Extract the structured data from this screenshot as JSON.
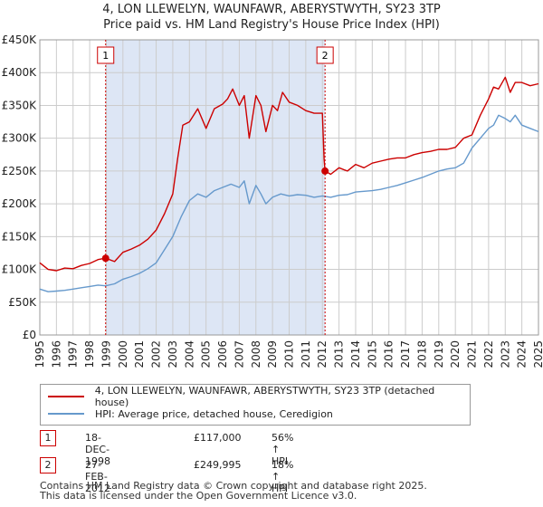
{
  "header": {
    "title_line1": "4, LON LLEWELYN, WAUNFAWR, ABERYSTWYTH, SY23 3TP",
    "title_line2": "Price paid vs. HM Land Registry's House Price Index (HPI)"
  },
  "colors": {
    "property": "#cc0000",
    "hpi": "#6699cc",
    "shade": "#dde6f5",
    "grid": "#cccccc"
  },
  "legend": {
    "property_label": "4, LON LLEWELYN, WAUNFAWR, ABERYSTWYTH, SY23 3TP (detached house)",
    "hpi_label": "HPI: Average price, detached house, Ceredigion"
  },
  "transactions": [
    {
      "id": "1",
      "date": "18-DEC-1998",
      "price": "£117,000",
      "hpi_change": "56% ↑ HPI"
    },
    {
      "id": "2",
      "date": "27-FEB-2012",
      "price": "£249,995",
      "hpi_change": "18% ↑ HPI"
    }
  ],
  "footer": {
    "line1": "Contains HM Land Registry data © Crown copyright and database right 2025.",
    "line2": "This data is licensed under the Open Government Licence v3.0."
  },
  "chart_data": {
    "type": "line",
    "title": "4, LON LLEWELYN, WAUNFAWR, ABERYSTWYTH, SY23 3TP — Price paid vs. HM Land Registry's House Price Index (HPI)",
    "xlabel": "",
    "ylabel": "",
    "xlim": [
      1995,
      2025
    ],
    "ylim": [
      0,
      450000
    ],
    "y_ticks": [
      0,
      50000,
      100000,
      150000,
      200000,
      250000,
      300000,
      350000,
      400000,
      450000
    ],
    "y_tick_labels": [
      "£0",
      "£50K",
      "£100K",
      "£150K",
      "£200K",
      "£250K",
      "£300K",
      "£350K",
      "£400K",
      "£450K"
    ],
    "x_ticks": [
      1995,
      1996,
      1997,
      1998,
      1999,
      2000,
      2001,
      2002,
      2003,
      2004,
      2005,
      2006,
      2007,
      2008,
      2009,
      2010,
      2011,
      2012,
      2013,
      2014,
      2015,
      2016,
      2017,
      2018,
      2019,
      2020,
      2021,
      2022,
      2023,
      2024,
      2025
    ],
    "grid": true,
    "shaded_region": [
      1998.96,
      2012.16
    ],
    "markers": [
      {
        "label": "1",
        "x": 1998.96,
        "y": 117000
      },
      {
        "label": "2",
        "x": 2012.16,
        "y": 249995
      }
    ],
    "series": [
      {
        "name": "4, LON LLEWELYN, WAUNFAWR, ABERYSTWYTH, SY23 3TP (detached house)",
        "color": "#cc0000",
        "x": [
          1995,
          1995.5,
          1996,
          1996.5,
          1997,
          1997.5,
          1998,
          1998.5,
          1998.96,
          1999.5,
          2000,
          2000.5,
          2001,
          2001.5,
          2002,
          2002.5,
          2003,
          2003.3,
          2003.6,
          2004,
          2004.5,
          2005,
          2005.5,
          2006,
          2006.3,
          2006.6,
          2007,
          2007.3,
          2007.6,
          2008,
          2008.3,
          2008.6,
          2009,
          2009.3,
          2009.6,
          2010,
          2010.5,
          2011,
          2011.5,
          2012,
          2012.1,
          2012.16,
          2012.5,
          2013,
          2013.5,
          2014,
          2014.5,
          2015,
          2015.5,
          2016,
          2016.5,
          2017,
          2017.5,
          2018,
          2018.5,
          2019,
          2019.5,
          2020,
          2020.5,
          2021,
          2021.5,
          2022,
          2022.3,
          2022.6,
          2023,
          2023.3,
          2023.6,
          2024,
          2024.5,
          2025
        ],
        "y": [
          110000,
          100000,
          98000,
          102000,
          101000,
          106000,
          109000,
          115000,
          117000,
          112000,
          126000,
          131000,
          137000,
          146000,
          160000,
          185000,
          215000,
          270000,
          320000,
          325000,
          345000,
          315000,
          345000,
          352000,
          360000,
          375000,
          350000,
          365000,
          300000,
          365000,
          350000,
          310000,
          350000,
          342000,
          370000,
          355000,
          350000,
          342000,
          338000,
          338000,
          268000,
          249995,
          245000,
          255000,
          250000,
          260000,
          255000,
          262000,
          265000,
          268000,
          270000,
          270000,
          275000,
          278000,
          280000,
          283000,
          283000,
          286000,
          300000,
          305000,
          335000,
          360000,
          378000,
          375000,
          393000,
          370000,
          385000,
          385000,
          380000,
          383000
        ]
      },
      {
        "name": "HPI: Average price, detached house, Ceredigion",
        "color": "#6699cc",
        "x": [
          1995,
          1995.5,
          1996,
          1996.5,
          1997,
          1997.5,
          1998,
          1998.5,
          1998.96,
          1999.5,
          2000,
          2000.5,
          2001,
          2001.5,
          2002,
          2002.5,
          2003,
          2003.5,
          2004,
          2004.5,
          2005,
          2005.5,
          2006,
          2006.5,
          2007,
          2007.3,
          2007.6,
          2008,
          2008.3,
          2008.6,
          2009,
          2009.5,
          2010,
          2010.5,
          2011,
          2011.5,
          2012,
          2012.5,
          2013,
          2013.5,
          2014,
          2014.5,
          2015,
          2015.5,
          2016,
          2016.5,
          2017,
          2017.5,
          2018,
          2018.5,
          2019,
          2019.5,
          2020,
          2020.5,
          2021,
          2021.5,
          2022,
          2022.3,
          2022.6,
          2023,
          2023.3,
          2023.6,
          2024,
          2024.5,
          2025
        ],
        "y": [
          70000,
          66000,
          67000,
          68000,
          70000,
          72000,
          74000,
          76000,
          75000,
          78000,
          85000,
          89000,
          94000,
          101000,
          110000,
          130000,
          150000,
          180000,
          205000,
          215000,
          210000,
          220000,
          225000,
          230000,
          225000,
          235000,
          200000,
          228000,
          215000,
          200000,
          210000,
          215000,
          212000,
          214000,
          213000,
          210000,
          212000,
          210000,
          213000,
          214000,
          218000,
          219000,
          220000,
          222000,
          225000,
          228000,
          232000,
          236000,
          240000,
          245000,
          250000,
          253000,
          255000,
          262000,
          285000,
          300000,
          315000,
          320000,
          335000,
          330000,
          325000,
          335000,
          320000,
          315000,
          310000
        ]
      }
    ]
  }
}
